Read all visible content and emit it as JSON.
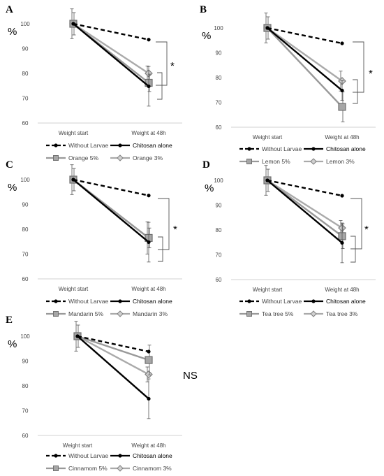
{
  "chart_data": [
    {
      "type": "line",
      "panel": "A",
      "ylabel": "%",
      "categories": [
        "Weight start",
        "Weight at 48h"
      ],
      "ylim": [
        60,
        100
      ],
      "yticks": [
        60,
        70,
        80,
        90,
        100
      ],
      "series": [
        {
          "name": "Without Larvae",
          "values": [
            100,
            93.6
          ],
          "color": "#000000",
          "dash": "dashed",
          "marker": "circle"
        },
        {
          "name": "Chitosan alone",
          "values": [
            100,
            74.8
          ],
          "color": "#000000",
          "dash": "solid",
          "marker": "circle",
          "error": [
            0,
            8
          ]
        },
        {
          "name": "Orange 5%",
          "values": [
            100,
            76.2
          ],
          "color": "#999999",
          "dash": "solid",
          "marker": "square",
          "error": [
            4.5,
            3.5
          ]
        },
        {
          "name": "Orange 3%",
          "values": [
            100,
            80
          ],
          "color": "#aaaaaa",
          "dash": "solid",
          "marker": "diamond",
          "error": [
            6,
            3
          ]
        }
      ],
      "annotation": "*"
    },
    {
      "type": "line",
      "panel": "B",
      "ylabel": "%",
      "categories": [
        "Weight start",
        "Weight at 48h"
      ],
      "ylim": [
        60,
        100
      ],
      "yticks": [
        60,
        70,
        80,
        90,
        100
      ],
      "series": [
        {
          "name": "Without Larvae",
          "values": [
            100,
            93.8
          ],
          "color": "#000000",
          "dash": "dashed",
          "marker": "circle"
        },
        {
          "name": "Chitosan alone",
          "values": [
            100,
            74.8
          ],
          "color": "#000000",
          "dash": "solid",
          "marker": "circle",
          "error": [
            0,
            4
          ]
        },
        {
          "name": "Lemon 5%",
          "values": [
            100,
            68.2
          ],
          "color": "#999999",
          "dash": "solid",
          "marker": "square",
          "error": [
            4.5,
            6
          ]
        },
        {
          "name": "Lemon 3%",
          "values": [
            100,
            78.6
          ],
          "color": "#aaaaaa",
          "dash": "solid",
          "marker": "diamond",
          "error": [
            6,
            4
          ]
        }
      ],
      "annotation": "*"
    },
    {
      "type": "line",
      "panel": "C",
      "ylabel": "%",
      "categories": [
        "Weight start",
        "Weight at 48h"
      ],
      "ylim": [
        60,
        100
      ],
      "yticks": [
        60,
        70,
        80,
        90,
        100
      ],
      "series": [
        {
          "name": "Without Larvae",
          "values": [
            100,
            93.6
          ],
          "color": "#000000",
          "dash": "dashed",
          "marker": "circle"
        },
        {
          "name": "Chitosan alone",
          "values": [
            100,
            74.8
          ],
          "color": "#000000",
          "dash": "solid",
          "marker": "circle",
          "error": [
            0,
            8
          ]
        },
        {
          "name": "Mandarin 5%",
          "values": [
            100,
            76.5
          ],
          "color": "#999999",
          "dash": "solid",
          "marker": "square",
          "error": [
            4.5,
            4
          ]
        },
        {
          "name": "Mandarin 3%",
          "values": [
            100,
            76.5
          ],
          "color": "#aaaaaa",
          "dash": "solid",
          "marker": "diamond",
          "error": [
            6,
            6.5
          ]
        }
      ],
      "annotation": "*"
    },
    {
      "type": "line",
      "panel": "D",
      "ylabel": "%",
      "categories": [
        "Weight start",
        "Weight at 48h"
      ],
      "ylim": [
        60,
        100
      ],
      "yticks": [
        60,
        70,
        80,
        90,
        100
      ],
      "series": [
        {
          "name": "Without Larvae",
          "values": [
            100,
            93.8
          ],
          "color": "#000000",
          "dash": "dashed",
          "marker": "circle"
        },
        {
          "name": "Chitosan alone",
          "values": [
            100,
            74.8
          ],
          "color": "#000000",
          "dash": "solid",
          "marker": "circle",
          "error": [
            0,
            8
          ]
        },
        {
          "name": "Tea tree 5%",
          "values": [
            100,
            77.5
          ],
          "color": "#999999",
          "dash": "solid",
          "marker": "square",
          "error": [
            4.5,
            5
          ]
        },
        {
          "name": "Tea tree 3%",
          "values": [
            100,
            80.8
          ],
          "color": "#aaaaaa",
          "dash": "solid",
          "marker": "diamond",
          "error": [
            6,
            3
          ]
        }
      ],
      "annotation": "*"
    },
    {
      "type": "line",
      "panel": "E",
      "ylabel": "%",
      "categories": [
        "Weight start",
        "Weight at 48h"
      ],
      "ylim": [
        60,
        100
      ],
      "yticks": [
        60,
        70,
        80,
        90,
        100
      ],
      "series": [
        {
          "name": "Without Larvae",
          "values": [
            100,
            93.8
          ],
          "color": "#000000",
          "dash": "dashed",
          "marker": "circle"
        },
        {
          "name": "Chitosan alone",
          "values": [
            100,
            74.8
          ],
          "color": "#000000",
          "dash": "solid",
          "marker": "circle",
          "error": [
            0,
            8
          ]
        },
        {
          "name": "Cinnamom 5%",
          "values": [
            100,
            90.4
          ],
          "color": "#999999",
          "dash": "solid",
          "marker": "square",
          "error": [
            4.5,
            6
          ]
        },
        {
          "name": "Cinnamom 3%",
          "values": [
            100,
            84.6
          ],
          "color": "#aaaaaa",
          "dash": "solid",
          "marker": "diamond",
          "error": [
            6,
            3
          ]
        }
      ],
      "annotation": "NS"
    }
  ]
}
